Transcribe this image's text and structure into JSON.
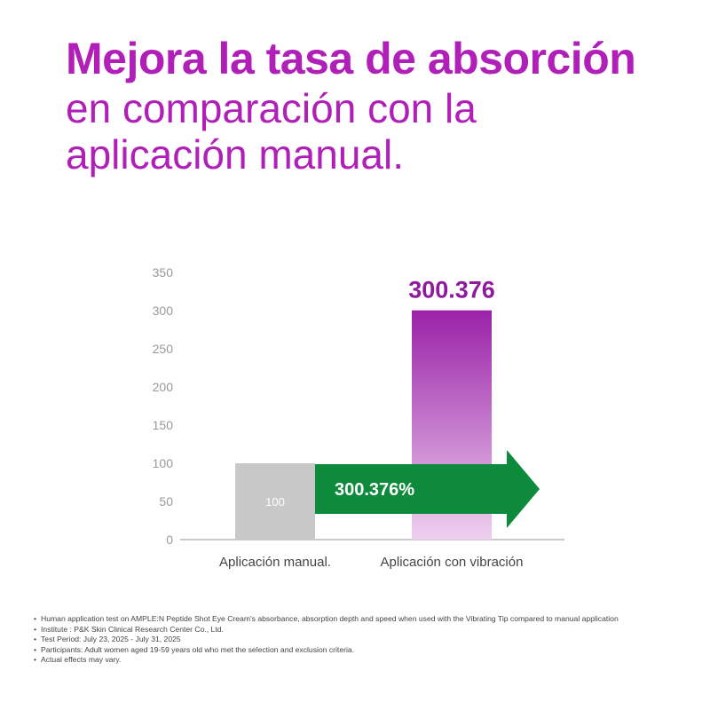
{
  "headline": {
    "bold": "Mejora la tasa de absorción",
    "line2": "en comparación con la",
    "line3": "aplicación manual."
  },
  "chart_data": {
    "type": "bar",
    "categories": [
      "Aplicación manual.",
      "Aplicación con vibración"
    ],
    "values": [
      100,
      300.376
    ],
    "value_labels": [
      "100",
      "300.376"
    ],
    "ylim": [
      0,
      350
    ],
    "yticks": [
      0,
      50,
      100,
      150,
      200,
      250,
      300,
      350
    ],
    "grid": false,
    "arrow_label": "300.376%",
    "colors": {
      "manual_bar": "#c8c8c8",
      "vibration_bar_top": "#9a22a8",
      "vibration_bar_bottom": "#eed0ef",
      "value_label": "#8e1b9e",
      "arrow": "#0e8a3c",
      "axis_text": "#999999"
    }
  },
  "footnotes": [
    "Human application test on AMPLE:N Peptide Shot Eye Cream's absorbance, absorption depth and speed when used with the Vibrating Tip compared to manual application",
    "Institute : P&K Skin Clinical Research Center Co., Ltd.",
    "Test Period: July 23, 2025 - July 31, 2025",
    "Participants: Adult women aged 19-59 years old who met the selection and exclusion criteria.",
    "Actual effects may vary."
  ]
}
